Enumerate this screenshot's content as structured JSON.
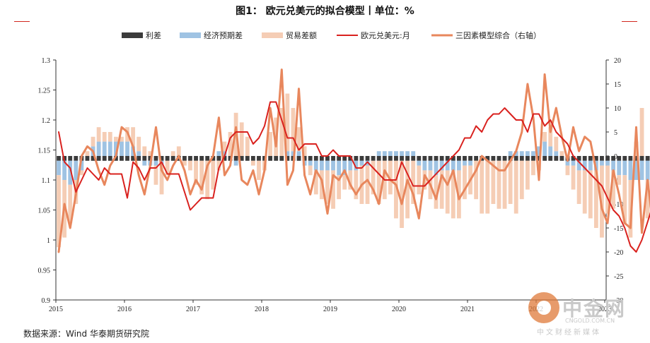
{
  "title": {
    "label": "图1：",
    "text": "欧元兑美元的拟合模型丨单位：%"
  },
  "source": "数据来源：Wind 华泰期货研究院",
  "watermark": {
    "name": "中金网",
    "url": "CNGOLD.COM.CN",
    "sub": "中文财经新媒体"
  },
  "colors": {
    "rule": "#d2261e",
    "rate_diff": "#3b3b3b",
    "econ": "#9fc3e3",
    "trade": "#f5cdb5",
    "eurusd": "#d9211e",
    "model": "#e8875d"
  },
  "chart_data": {
    "type": "bar",
    "x_tick_labels": [
      "2015",
      "2016",
      "2017",
      "2018",
      "2019",
      "2020",
      "2021",
      "2022",
      "2023"
    ],
    "left_axis": {
      "ylim": [
        0.9,
        1.3
      ],
      "ticks": [
        "0.9",
        "0.95",
        "1",
        "1.05",
        "1.1",
        "1.15",
        "1.2",
        "1.25",
        "1.3"
      ]
    },
    "right_axis": {
      "ylim": [
        -30,
        20
      ],
      "ticks": [
        "-30",
        "-25",
        "-20",
        "-15",
        "-10",
        "-5",
        "0",
        "5",
        "10",
        "15",
        "20"
      ]
    },
    "grid": false,
    "legend_position": "top",
    "series": [
      {
        "name": "利差",
        "type": "bar",
        "axis": "right",
        "values": [
          -1,
          -1,
          -1,
          -1,
          -1,
          -1,
          -1,
          -1,
          -1,
          -1,
          -1,
          -1,
          -1,
          -1,
          -1,
          -1,
          -1,
          -1,
          -1,
          -1,
          -1,
          -1,
          -1,
          -1,
          -1,
          -1,
          -1,
          -1,
          -1,
          -1,
          -1,
          -1,
          -1,
          -1,
          -1,
          -1,
          -1,
          -1,
          -1,
          -1,
          -1,
          -1,
          -1,
          -1,
          -1,
          -1,
          -1,
          -1,
          -1,
          -1,
          -1,
          -1,
          -1,
          -1,
          -1,
          -1,
          -1,
          -1,
          -1,
          -1,
          -1,
          -1,
          -1,
          -1,
          -1,
          -1,
          -1,
          -1,
          -1,
          -1,
          -1,
          -1,
          -1,
          -1,
          -1,
          -1,
          -1,
          -1,
          -1,
          -1,
          -1,
          -1,
          -1,
          -1,
          -1,
          -1,
          -1,
          -1,
          -1,
          -1,
          -1,
          -1,
          -1,
          -1,
          -1,
          -1,
          -1,
          -1,
          -1,
          -1,
          -1,
          -1,
          -1,
          -1,
          -1,
          -1,
          -1,
          -1,
          -1,
          -1,
          -1,
          -1,
          -1,
          -1,
          -1,
          -1,
          -1,
          -1,
          -1,
          -1
        ]
      },
      {
        "name": "经济预期差",
        "type": "bar",
        "axis": "right",
        "values": [
          -3,
          -4,
          -5,
          -4,
          -2,
          0,
          2,
          3,
          3,
          3,
          3,
          3,
          3,
          2,
          1,
          -1,
          -1,
          -1,
          -1,
          0,
          0,
          0,
          0,
          0,
          0,
          0,
          0,
          0,
          1,
          1,
          0,
          -1,
          0,
          0,
          0,
          0,
          0,
          0,
          0,
          0,
          1,
          1,
          1,
          -1,
          -1,
          -2,
          -2,
          -2,
          -2,
          -3,
          -3,
          -2,
          -2,
          -1,
          -1,
          0,
          1,
          1,
          1,
          1,
          1,
          1,
          1,
          -1,
          -2,
          -2,
          -3,
          -2,
          -2,
          -2,
          -2,
          -1,
          -1,
          0,
          0,
          0,
          0,
          0,
          0,
          1,
          1,
          1,
          1,
          1,
          2,
          3,
          2,
          1,
          0,
          -1,
          -1,
          -2,
          -2,
          -2,
          -2,
          -1,
          -1,
          -2,
          -3,
          -3,
          -4,
          -4,
          -4,
          -4,
          -4,
          -4,
          -4,
          -4,
          -4,
          -4,
          -4,
          -4,
          -4,
          -4,
          -3,
          -3,
          -3,
          -3,
          -3,
          -3,
          -3,
          -3
        ]
      },
      {
        "name": "贸易差额",
        "type": "bar",
        "axis": "right",
        "values": [
          -15,
          -12,
          -8,
          -5,
          -1,
          1,
          2,
          3,
          2,
          2,
          1,
          1,
          3,
          4,
          3,
          2,
          1,
          -4,
          -6,
          -3,
          1,
          2,
          -1,
          -2,
          -5,
          -7,
          -8,
          -6,
          -2,
          2,
          5,
          9,
          7,
          4,
          -1,
          -4,
          -2,
          5,
          8,
          10,
          12,
          9,
          5,
          2,
          -2,
          -5,
          -6,
          -7,
          -8,
          -5,
          -3,
          -4,
          -6,
          -8,
          -8,
          -7,
          -9,
          -8,
          -7,
          -12,
          -14,
          -12,
          -9,
          -6,
          -4,
          -6,
          -7,
          -8,
          -9,
          -10,
          -10,
          -7,
          -6,
          -8,
          -11,
          -11,
          -9,
          -10,
          -10,
          -9,
          -11,
          -8,
          -6,
          -3,
          -2,
          2,
          4,
          3,
          1,
          -2,
          -5,
          -7,
          -9,
          -10,
          -12,
          -15,
          -10,
          -8,
          -2,
          -10,
          -12,
          3,
          10,
          -8,
          -20,
          -15,
          -10,
          -15,
          -5,
          -5,
          -5,
          -5,
          -5,
          -5,
          -5,
          -5,
          -5,
          -5,
          -5,
          -5
        ]
      },
      {
        "name": "欧元兑美元:月",
        "type": "line",
        "axis": "left",
        "values": [
          1.18,
          1.13,
          1.12,
          1.08,
          1.1,
          1.12,
          1.11,
          1.1,
          1.12,
          1.11,
          1.11,
          1.11,
          1.07,
          1.13,
          1.12,
          1.1,
          1.12,
          1.12,
          1.13,
          1.11,
          1.11,
          1.11,
          1.08,
          1.05,
          1.06,
          1.07,
          1.07,
          1.07,
          1.12,
          1.14,
          1.17,
          1.18,
          1.18,
          1.18,
          1.16,
          1.17,
          1.19,
          1.23,
          1.23,
          1.2,
          1.17,
          1.17,
          1.15,
          1.16,
          1.16,
          1.16,
          1.14,
          1.14,
          1.15,
          1.14,
          1.14,
          1.14,
          1.12,
          1.12,
          1.13,
          1.12,
          1.11,
          1.1,
          1.1,
          1.1,
          1.13,
          1.11,
          1.09,
          1.09,
          1.09,
          1.1,
          1.11,
          1.12,
          1.13,
          1.14,
          1.15,
          1.17,
          1.17,
          1.19,
          1.18,
          1.2,
          1.21,
          1.21,
          1.22,
          1.21,
          1.2,
          1.2,
          1.18,
          1.21,
          1.21,
          1.19,
          1.2,
          1.18,
          1.17,
          1.16,
          1.14,
          1.13,
          1.12,
          1.11,
          1.1,
          1.09,
          1.07,
          1.05,
          1.04,
          1.02,
          0.99,
          0.98,
          1.0,
          1.03,
          1.06,
          1.07,
          1.08,
          1.08,
          1.09,
          1.09,
          1.09,
          1.09,
          1.09,
          1.09,
          1.09,
          1.09,
          1.09,
          1.09,
          1.09,
          1.09
        ]
      },
      {
        "name": "三因素模型综合（右轴）",
        "type": "line",
        "axis": "right",
        "values": [
          -20,
          -10,
          -15,
          -8,
          0,
          2,
          1,
          -3,
          -6,
          -2,
          0,
          6,
          5,
          2,
          -4,
          -8,
          -2,
          6,
          -3,
          -5,
          -2,
          0,
          -3,
          -8,
          -5,
          -7,
          -2,
          0,
          8,
          -4,
          -2,
          6,
          -5,
          -6,
          -3,
          -8,
          -3,
          10,
          2,
          18,
          -6,
          -3,
          14,
          -4,
          -8,
          -3,
          -5,
          -12,
          -4,
          -5,
          -3,
          -6,
          -8,
          -6,
          -5,
          -7,
          -10,
          -3,
          -5,
          -6,
          -10,
          -5,
          -8,
          -13,
          -4,
          -6,
          -9,
          -4,
          -6,
          -3,
          -9,
          -7,
          -5,
          -3,
          0,
          -1,
          -2,
          -3,
          -3,
          -1,
          1,
          5,
          15,
          8,
          -5,
          17,
          5,
          10,
          4,
          -1,
          6,
          1,
          4,
          3,
          -3,
          -11,
          -14,
          -3,
          -8,
          -14,
          -15,
          6,
          -16,
          -5,
          -15,
          -12,
          -22,
          -20,
          -12,
          -8,
          -18,
          -5,
          -5,
          -5,
          -6,
          -5,
          -5,
          -5,
          -5,
          -5,
          -5,
          -5
        ]
      }
    ]
  }
}
